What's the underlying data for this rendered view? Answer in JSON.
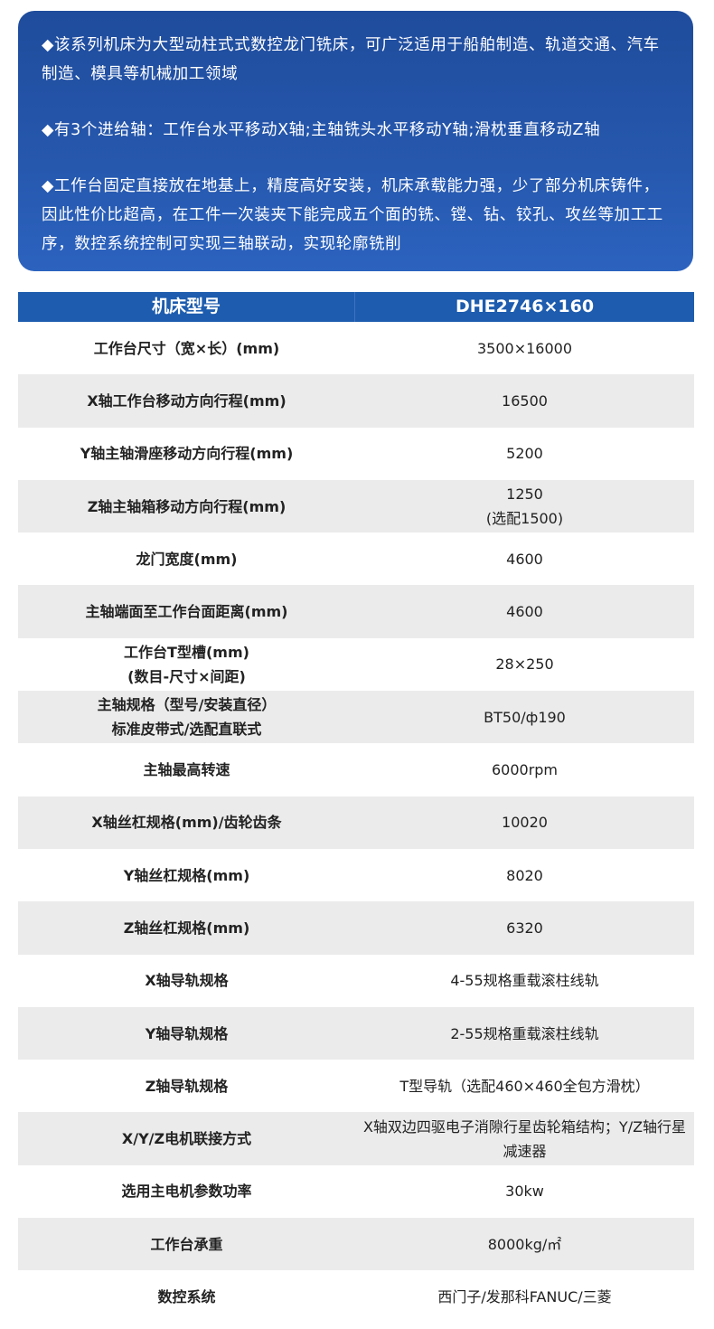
{
  "intro": {
    "paragraphs": [
      "◆该系列机床为大型动柱式式数控龙门铣床，可广泛适用于船舶制造、轨道交通、汽车制造、模具等机械加工领域",
      "◆有3个进给轴：工作台水平移动X轴;主轴铣头水平移动Y轴;滑枕垂直移动Z轴",
      "◆工作台固定直接放在地基上，精度高好安装，机床承载能力强，少了部分机床铸件，因此性价比超高，在工件一次装夹下能完成五个面的铣、镗、钻、铰孔、攻丝等加工工序，数控系统控制可实现三轴联动，实现轮廓铣削"
    ]
  },
  "table": {
    "header": [
      "机床型号",
      "DHE2746×160"
    ],
    "rows": [
      [
        "工作台尺寸（宽×长）(mm)",
        "3500×16000"
      ],
      [
        "X轴工作台移动方向行程(mm)",
        "16500"
      ],
      [
        "Y轴主轴滑座移动方向行程(mm)",
        "5200"
      ],
      [
        "Z轴主轴箱移动方向行程(mm)",
        "1250\n(选配1500)"
      ],
      [
        "龙门宽度(mm)",
        "4600"
      ],
      [
        "主轴端面至工作台面距离(mm)",
        "4600"
      ],
      [
        "工作台T型槽(mm)\n(数目-尺寸×间距)",
        "28×250"
      ],
      [
        "主轴规格（型号/安装直径）\n标准皮带式/选配直联式",
        "BT50/ф190"
      ],
      [
        "主轴最高转速",
        "6000rpm"
      ],
      [
        "X轴丝杠规格(mm)/齿轮齿条",
        "10020"
      ],
      [
        "Y轴丝杠规格(mm)",
        "8020"
      ],
      [
        "Z轴丝杠规格(mm)",
        "6320"
      ],
      [
        "X轴导轨规格",
        "4-55规格重载滚柱线轨"
      ],
      [
        "Y轴导轨规格",
        "2-55规格重载滚柱线轨"
      ],
      [
        "Z轴导轨规格",
        "T型导轨（选配460×460全包方滑枕）"
      ],
      [
        "X/Y/Z电机联接方式",
        "X轴双边四驱电子消隙行星齿轮箱结构；Y/Z轴行星减速器"
      ],
      [
        "选用主电机参数功率",
        "30kw"
      ],
      [
        "工作台承重",
        "8000kg/㎡"
      ],
      [
        "数控系统",
        "西门子/发那科FANUC/三菱"
      ]
    ]
  }
}
